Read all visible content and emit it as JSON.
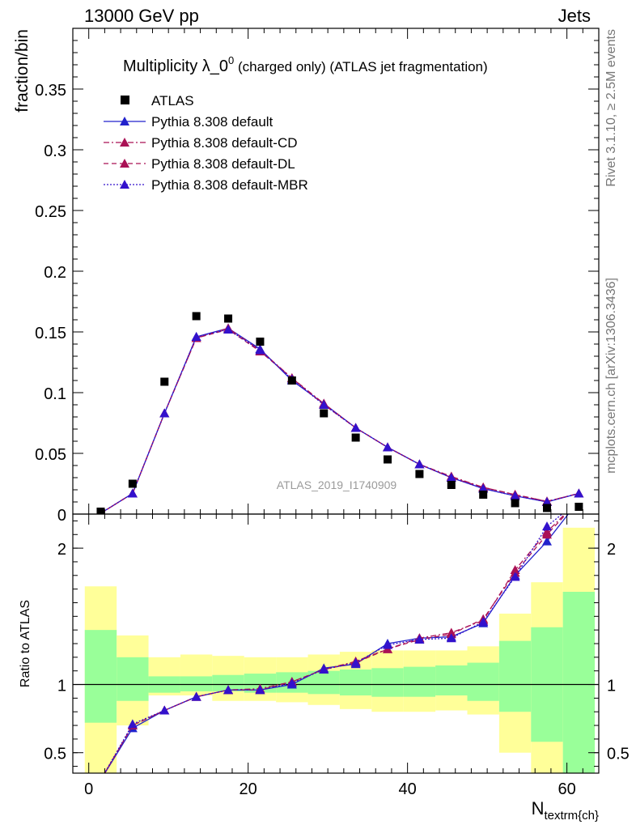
{
  "header": {
    "left": "13000 GeV pp",
    "right": "Jets"
  },
  "side_text": {
    "top": "Rivet 3.1.10, ≥ 2.5M events",
    "bottom": "mcplots.cern.ch [arXiv:1306.3436]"
  },
  "watermark": "ATLAS_2019_I1740909",
  "chart_data": [
    {
      "type": "scatter",
      "title_main": "Multiplicity λ_0",
      "title_sup": "0",
      "title_rest": " (charged only) (ATLAS jet fragmentation)",
      "ylabel": "fraction/bin",
      "xlim": [
        -2,
        64
      ],
      "ylim": [
        0,
        0.4
      ],
      "yticks": [
        0,
        0.05,
        0.1,
        0.15,
        0.2,
        0.25,
        0.3,
        0.35
      ],
      "ytick_labels": [
        "0",
        "0.05",
        "0.1",
        "0.15",
        "0.2",
        "0.25",
        "0.3",
        "0.35"
      ],
      "x": [
        1.5,
        5.5,
        9.5,
        13.5,
        17.5,
        21.5,
        25.5,
        29.5,
        33.5,
        37.5,
        41.5,
        45.5,
        49.5,
        53.5,
        57.5,
        61.5
      ],
      "series": [
        {
          "name": "ATLAS",
          "marker": "square",
          "color": "#000000",
          "dash": "none",
          "values": [
            0.002,
            0.025,
            0.109,
            0.163,
            0.161,
            0.142,
            0.11,
            0.083,
            0.063,
            0.045,
            0.033,
            0.024,
            0.016,
            0.009,
            0.005,
            0.006
          ]
        },
        {
          "name": "Pythia 8.308 default",
          "marker": "triangle",
          "color": "#2222cc",
          "dash": "solid",
          "values": [
            0.0007,
            0.017,
            0.083,
            0.146,
            0.153,
            0.136,
            0.11,
            0.091,
            0.071,
            0.055,
            0.041,
            0.03,
            0.021,
            0.015,
            0.01,
            0.017
          ]
        },
        {
          "name": "Pythia 8.308 default-CD",
          "marker": "triangle",
          "color": "#aa1155",
          "dash": "dashdot",
          "values": [
            0.0006,
            0.017,
            0.083,
            0.145,
            0.153,
            0.135,
            0.112,
            0.091,
            0.071,
            0.055,
            0.041,
            0.031,
            0.022,
            0.016,
            0.0105,
            0.017
          ]
        },
        {
          "name": "Pythia 8.308 default-DL",
          "marker": "triangle",
          "color": "#aa1155",
          "dash": "dash",
          "values": [
            0.0006,
            0.017,
            0.083,
            0.145,
            0.152,
            0.134,
            0.112,
            0.09,
            0.071,
            0.055,
            0.041,
            0.03,
            0.022,
            0.016,
            0.0104,
            0.017
          ]
        },
        {
          "name": "Pythia 8.308 default-MBR",
          "marker": "triangle",
          "color": "#3311cc",
          "dash": "dot",
          "values": [
            0.0007,
            0.017,
            0.083,
            0.146,
            0.152,
            0.135,
            0.111,
            0.09,
            0.071,
            0.055,
            0.041,
            0.03,
            0.021,
            0.015,
            0.01,
            0.017
          ]
        }
      ]
    },
    {
      "type": "line",
      "ylabel": "Ratio to ATLAS",
      "xlabel_main": "N",
      "xlabel_sub": "textrm{ch}",
      "xlim": [
        -2,
        64
      ],
      "ylim": [
        0.35,
        2.25
      ],
      "yticks": [
        0.5,
        1,
        2
      ],
      "ytick_labels": [
        "0.5",
        "1",
        "2"
      ],
      "xticks": [
        0,
        20,
        40,
        60
      ],
      "xtick_labels": [
        "0",
        "20",
        "40",
        "60"
      ],
      "bin_edges": [
        -0.5,
        3.5,
        7.5,
        11.5,
        15.5,
        19.5,
        23.5,
        27.5,
        31.5,
        35.5,
        39.5,
        43.5,
        47.5,
        51.5,
        55.5,
        59.5,
        63.5
      ],
      "band_outer_low": [
        0.0,
        0.7,
        0.92,
        0.92,
        0.88,
        0.88,
        0.87,
        0.85,
        0.82,
        0.8,
        0.8,
        0.81,
        0.78,
        0.5,
        0.3,
        0.3
      ],
      "band_outer_high": [
        1.72,
        1.36,
        1.2,
        1.22,
        1.21,
        1.2,
        1.2,
        1.22,
        1.24,
        1.25,
        1.25,
        1.25,
        1.28,
        1.52,
        1.75,
        2.15
      ],
      "band_inner_low": [
        0.72,
        0.88,
        0.94,
        0.95,
        0.95,
        0.94,
        0.94,
        0.93,
        0.92,
        0.91,
        0.91,
        0.92,
        0.88,
        0.8,
        0.58,
        0.35
      ],
      "band_inner_high": [
        1.4,
        1.2,
        1.06,
        1.06,
        1.07,
        1.08,
        1.09,
        1.1,
        1.11,
        1.12,
        1.13,
        1.14,
        1.16,
        1.32,
        1.42,
        1.68
      ],
      "x": [
        1.5,
        5.5,
        9.5,
        13.5,
        17.5,
        21.5,
        25.5,
        29.5,
        33.5,
        37.5,
        41.5,
        45.5,
        49.5,
        53.5,
        57.5,
        61.5
      ],
      "series": [
        {
          "name": "Pythia 8.308 default",
          "color": "#2222cc",
          "dash": "solid",
          "values": [
            0.3,
            0.68,
            0.81,
            0.91,
            0.96,
            0.96,
            1.0,
            1.12,
            1.15,
            1.3,
            1.34,
            1.35,
            1.45,
            1.8,
            2.05,
            2.35
          ]
        },
        {
          "name": "Pythia 8.308 default-CD",
          "color": "#aa1155",
          "dash": "dashdot",
          "values": [
            0.3,
            0.7,
            0.81,
            0.91,
            0.96,
            0.97,
            1.02,
            1.11,
            1.17,
            1.26,
            1.34,
            1.38,
            1.47,
            1.84,
            2.12,
            2.35
          ]
        },
        {
          "name": "Pythia 8.308 default-DL",
          "color": "#aa1155",
          "dash": "dash",
          "values": [
            0.3,
            0.7,
            0.81,
            0.91,
            0.96,
            0.96,
            1.02,
            1.11,
            1.16,
            1.26,
            1.33,
            1.37,
            1.48,
            1.82,
            2.1,
            2.35
          ]
        },
        {
          "name": "Pythia 8.308 default-MBR",
          "color": "#3311cc",
          "dash": "dot",
          "values": [
            0.3,
            0.71,
            0.81,
            0.91,
            0.96,
            0.96,
            1.01,
            1.11,
            1.16,
            1.29,
            1.33,
            1.34,
            1.46,
            1.79,
            2.16,
            2.35
          ]
        }
      ]
    }
  ]
}
